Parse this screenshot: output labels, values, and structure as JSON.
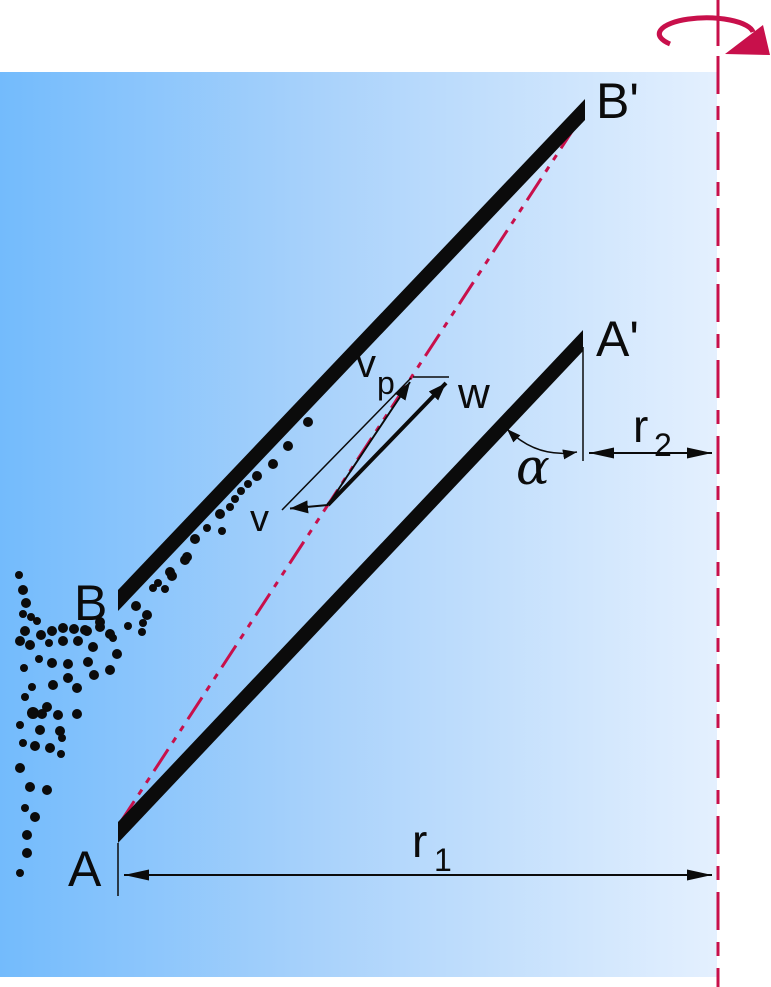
{
  "labels": {
    "b_prime": "B'",
    "a_prime": "A'",
    "b": "B",
    "a": "A",
    "r1_base": "r",
    "r1_sub": "1",
    "r2_base": "r",
    "r2_sub": "2",
    "v": "v",
    "vp_base": "v",
    "vp_sub": "p",
    "w": "w",
    "alpha": "α"
  },
  "colors": {
    "axis_accent_red": "#c8104b",
    "ink_black": "#0b0b0b",
    "fluid_gradient_left": "#73bbfc",
    "fluid_gradient_mid": "#a9d2fb",
    "fluid_gradient_right": "#e4f0fe"
  },
  "particles": {
    "dots": [
      [
        308,
        422,
        5
      ],
      [
        288,
        446,
        5
      ],
      [
        273,
        464,
        5
      ],
      [
        257,
        476,
        5
      ],
      [
        248,
        484,
        4
      ],
      [
        241,
        491,
        4
      ],
      [
        235,
        499,
        4
      ],
      [
        230,
        507,
        4
      ],
      [
        220,
        514,
        5
      ],
      [
        222,
        531,
        4
      ],
      [
        207,
        528,
        4
      ],
      [
        195,
        539,
        5
      ],
      [
        187,
        557,
        5
      ],
      [
        170,
        572,
        5
      ],
      [
        158,
        583,
        4
      ],
      [
        165,
        589,
        4
      ],
      [
        153,
        588,
        4
      ],
      [
        185,
        560,
        5
      ],
      [
        172,
        576,
        5
      ],
      [
        136,
        606,
        5
      ],
      [
        147,
        615,
        5
      ],
      [
        143,
        623,
        4
      ],
      [
        128,
        626,
        4
      ],
      [
        142,
        632,
        4
      ],
      [
        113,
        638,
        4
      ],
      [
        100,
        627,
        5
      ],
      [
        85,
        630,
        5
      ],
      [
        19,
        575,
        4
      ],
      [
        23,
        590,
        5
      ],
      [
        26,
        603,
        5
      ],
      [
        23,
        614,
        4
      ],
      [
        31,
        617,
        4
      ],
      [
        37,
        621,
        4
      ],
      [
        25,
        631,
        5
      ],
      [
        20,
        641,
        5
      ],
      [
        30,
        645,
        5
      ],
      [
        41,
        635,
        5
      ],
      [
        52,
        631,
        5
      ],
      [
        63,
        628,
        5
      ],
      [
        74,
        629,
        5
      ],
      [
        87,
        631,
        5
      ],
      [
        100,
        622,
        5
      ],
      [
        110,
        634,
        5
      ],
      [
        49,
        643,
        4
      ],
      [
        63,
        641,
        5
      ],
      [
        78,
        641,
        5
      ],
      [
        93,
        647,
        5
      ],
      [
        117,
        654,
        5
      ],
      [
        39,
        659,
        4
      ],
      [
        52,
        663,
        5
      ],
      [
        68,
        664,
        5
      ],
      [
        88,
        662,
        5
      ],
      [
        24,
        668,
        4
      ],
      [
        110,
        670,
        5
      ],
      [
        94,
        675,
        5
      ],
      [
        68,
        678,
        5
      ],
      [
        53,
        685,
        5
      ],
      [
        32,
        687,
        4
      ],
      [
        77,
        688,
        5
      ],
      [
        25,
        697,
        4
      ],
      [
        47,
        707,
        5
      ],
      [
        33,
        713,
        6
      ],
      [
        42,
        714,
        5
      ],
      [
        58,
        715,
        5
      ],
      [
        77,
        714,
        5
      ],
      [
        20,
        725,
        4
      ],
      [
        40,
        730,
        5
      ],
      [
        60,
        731,
        5
      ],
      [
        62,
        738,
        4
      ],
      [
        23,
        743,
        4
      ],
      [
        35,
        746,
        5
      ],
      [
        50,
        748,
        5
      ],
      [
        61,
        754,
        4
      ],
      [
        20,
        768,
        5
      ],
      [
        30,
        787,
        5
      ],
      [
        47,
        790,
        5
      ],
      [
        25,
        808,
        4
      ],
      [
        35,
        817,
        5
      ],
      [
        27,
        835,
        5
      ],
      [
        27,
        853,
        5
      ],
      [
        20,
        873,
        4
      ]
    ]
  }
}
